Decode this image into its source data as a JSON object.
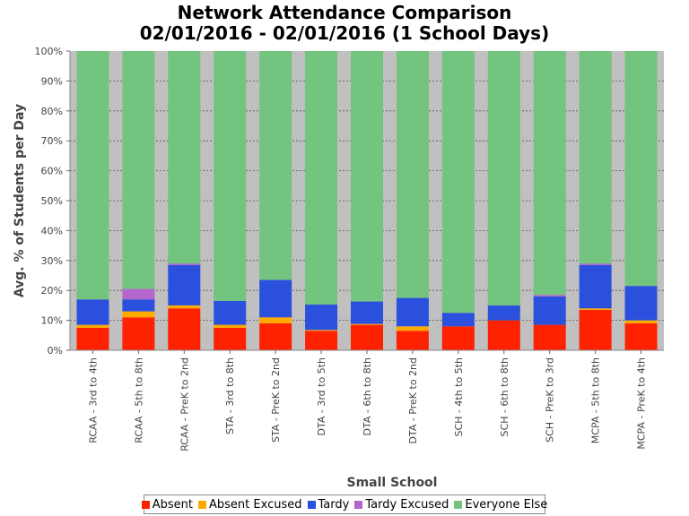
{
  "chart_data": {
    "type": "bar",
    "stacked": true,
    "title": "Network Attendance Comparison",
    "subtitle": "02/01/2016 - 02/01/2016 (1 School Days)",
    "xlabel": "Small School",
    "ylabel": "Avg. % of Students per Day",
    "ylim": [
      0,
      100
    ],
    "yticks": [
      "0%",
      "10%",
      "20%",
      "30%",
      "40%",
      "50%",
      "60%",
      "70%",
      "80%",
      "90%",
      "100%"
    ],
    "grid": true,
    "legend_position": "bottom",
    "categories": [
      "RCAA - 3rd to 4th",
      "RCAA - 5th to 8th",
      "RCAA - PreK to 2nd",
      "STA - 3rd to 8th",
      "STA - PreK to 2nd",
      "DTA - 3rd to 5th",
      "DTA - 6th to 8th",
      "DTA - PreK to 2nd",
      "SCH - 4th to 5th",
      "SCH - 6th to 8th",
      "SCH - PreK to 3rd",
      "MCPA - 5th to 8th",
      "MCPA - PreK to 4th"
    ],
    "series": [
      {
        "name": "Absent",
        "color": "#ff2200",
        "values": [
          7.5,
          11.0,
          14.0,
          7.5,
          9.0,
          6.5,
          8.5,
          6.5,
          8.0,
          10.0,
          8.5,
          13.5,
          9.0
        ]
      },
      {
        "name": "Absent Excused",
        "color": "#ffaa00",
        "values": [
          1.0,
          2.0,
          1.0,
          1.0,
          2.0,
          0.3,
          0.3,
          1.5,
          0.0,
          0.0,
          0.0,
          0.5,
          1.0
        ]
      },
      {
        "name": "Tardy",
        "color": "#2b50dd",
        "values": [
          8.5,
          4.0,
          13.5,
          8.0,
          12.5,
          8.5,
          7.5,
          9.5,
          4.5,
          5.0,
          9.5,
          14.5,
          11.5
        ]
      },
      {
        "name": "Tardy Excused",
        "color": "#b566cc",
        "values": [
          0.0,
          3.5,
          0.5,
          0.0,
          0.0,
          0.0,
          0.0,
          0.0,
          0.0,
          0.0,
          0.5,
          0.5,
          0.0
        ]
      },
      {
        "name": "Everyone Else",
        "color": "#73c47e",
        "values": [
          83.0,
          79.5,
          71.0,
          83.5,
          76.5,
          84.7,
          83.7,
          82.5,
          87.5,
          85.0,
          81.5,
          71.0,
          78.5
        ]
      }
    ],
    "colors": {
      "plot_background": "#c0c0c0",
      "gridline": "#555555"
    }
  }
}
